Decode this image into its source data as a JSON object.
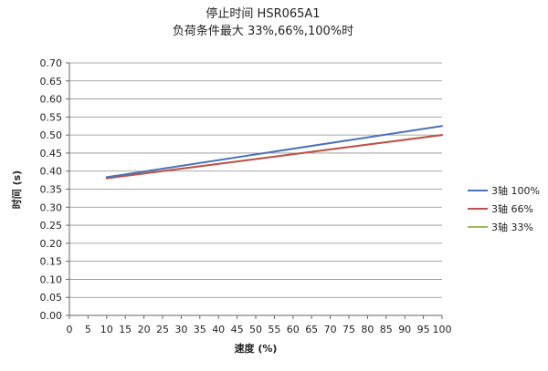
{
  "chart_data": {
    "type": "line",
    "title": "停止时间 HSR065A1",
    "subtitle": "负荷条件最大 33%,66%,100%时",
    "xlabel": "速度 (%)",
    "ylabel": "时间 (s)",
    "xlim": [
      0,
      100
    ],
    "ylim": [
      0.0,
      0.7
    ],
    "x_ticks": [
      "0",
      "5",
      "10",
      "15",
      "20",
      "25",
      "30",
      "35",
      "40",
      "45",
      "50",
      "55",
      "60",
      "65",
      "70",
      "75",
      "80",
      "85",
      "90",
      "95",
      "100"
    ],
    "y_ticks": [
      "0.00",
      "0.05",
      "0.10",
      "0.15",
      "0.20",
      "0.25",
      "0.30",
      "0.35",
      "0.40",
      "0.45",
      "0.50",
      "0.55",
      "0.60",
      "0.65",
      "0.70"
    ],
    "grid": "horizontal",
    "legend_position": "right",
    "series": [
      {
        "name": "3轴  100%",
        "color": "#4a72b8",
        "x": [
          10,
          100
        ],
        "y": [
          0.383,
          0.525
        ]
      },
      {
        "name": "3轴  66%",
        "color": "#c0504d",
        "x": [
          10,
          100
        ],
        "y": [
          0.38,
          0.5
        ]
      },
      {
        "name": "3轴  33%",
        "color": "#9bbb59",
        "x": [
          10,
          100
        ],
        "y": [
          0.38,
          0.5
        ]
      }
    ]
  }
}
